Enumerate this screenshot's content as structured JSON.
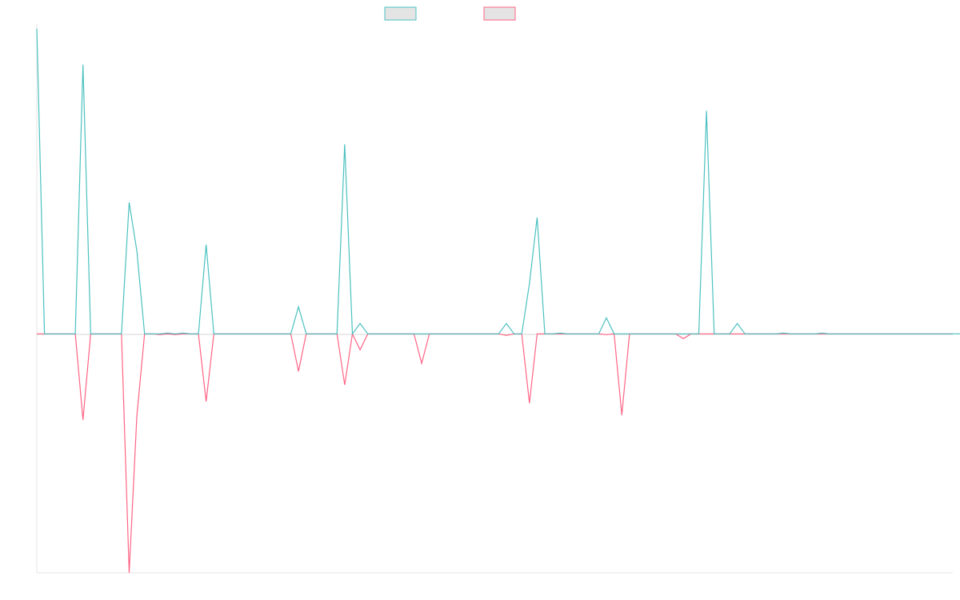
{
  "chart_data": {
    "type": "line",
    "title": "",
    "xlabel": "",
    "ylabel": "",
    "grid": false,
    "legend": "top-center",
    "ylim": [
      -300,
      383
    ],
    "x_count": 120,
    "series": [
      {
        "name": "",
        "color": "#4bc0c0",
        "fill": "rgba(201,203,207,0.5)",
        "values": [
          383,
          0,
          0,
          0,
          0,
          0,
          338,
          0,
          0,
          0,
          0,
          0,
          165,
          104,
          0,
          0,
          0,
          1,
          0,
          1,
          0,
          0,
          112,
          0,
          0,
          0,
          0,
          0,
          0,
          0,
          0,
          0,
          0,
          0,
          34,
          0,
          0,
          0,
          0,
          0,
          238,
          0,
          13,
          0,
          0,
          0,
          0,
          0,
          0,
          0,
          0,
          0,
          0,
          0,
          0,
          0,
          0,
          0,
          0,
          0,
          0,
          13,
          0,
          0,
          63,
          146,
          0,
          0,
          1,
          0,
          0,
          0,
          0,
          0,
          20,
          0,
          0,
          0,
          0,
          0,
          0,
          0,
          0,
          0,
          0,
          0,
          0,
          280,
          0,
          0,
          0,
          13,
          0,
          0,
          0,
          0,
          0,
          1,
          0,
          0,
          0,
          0,
          1,
          0,
          0,
          0,
          0,
          0,
          0,
          0,
          0,
          0,
          0,
          0,
          0,
          0,
          0,
          0,
          0,
          0,
          0
        ]
      },
      {
        "name": "",
        "color": "#ff6384",
        "fill": "rgba(201,203,207,0.5)",
        "values": [
          0,
          0,
          0,
          0,
          0,
          0,
          -108,
          0,
          0,
          0,
          0,
          0,
          -300,
          -103,
          0,
          0,
          -1,
          0,
          -1,
          0,
          0,
          0,
          -85,
          0,
          0,
          0,
          0,
          0,
          0,
          0,
          0,
          0,
          0,
          0,
          -47,
          0,
          0,
          0,
          0,
          0,
          -64,
          0,
          -20,
          0,
          0,
          0,
          0,
          0,
          0,
          0,
          -37,
          0,
          0,
          0,
          0,
          0,
          0,
          0,
          0,
          0,
          0,
          -2,
          0,
          0,
          -87,
          0,
          0,
          0,
          0,
          0,
          0,
          0,
          0,
          0,
          -1,
          0,
          -102,
          0,
          0,
          0,
          0,
          0,
          0,
          0,
          -6,
          0,
          0,
          0,
          0,
          0,
          0,
          0,
          0,
          0,
          0,
          0,
          0,
          0,
          0,
          0,
          0,
          0,
          0,
          0,
          0,
          0,
          0,
          0,
          0,
          0,
          0,
          0,
          0,
          0,
          0,
          0,
          0,
          0,
          0,
          0
        ]
      }
    ]
  }
}
